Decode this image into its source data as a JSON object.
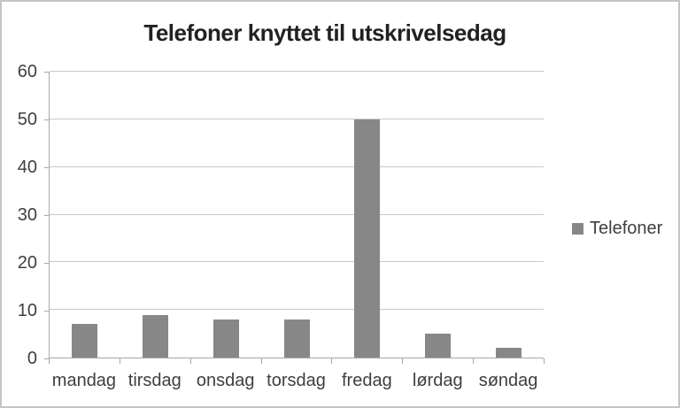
{
  "chart_data": {
    "type": "bar",
    "title": "Telefoner knyttet til utskrivelsedag",
    "categories": [
      "mandag",
      "tirsdag",
      "onsdag",
      "torsdag",
      "fredag",
      "lørdag",
      "søndag"
    ],
    "series": [
      {
        "name": "Telefoner",
        "values": [
          7,
          9,
          8,
          8,
          50,
          5,
          2
        ]
      }
    ],
    "xlabel": "",
    "ylabel": "",
    "ylim": [
      0,
      60
    ],
    "yticks": [
      0,
      10,
      20,
      30,
      40,
      50,
      60
    ],
    "grid": true,
    "legend_position": "right"
  },
  "colors": {
    "bar": "#878787",
    "grid": "#c9c9c9",
    "axis": "#a8a8a8",
    "text": "#3f3f3f",
    "title": "#212121",
    "frame_border": "#c6c6c6",
    "background": "#ffffff"
  }
}
